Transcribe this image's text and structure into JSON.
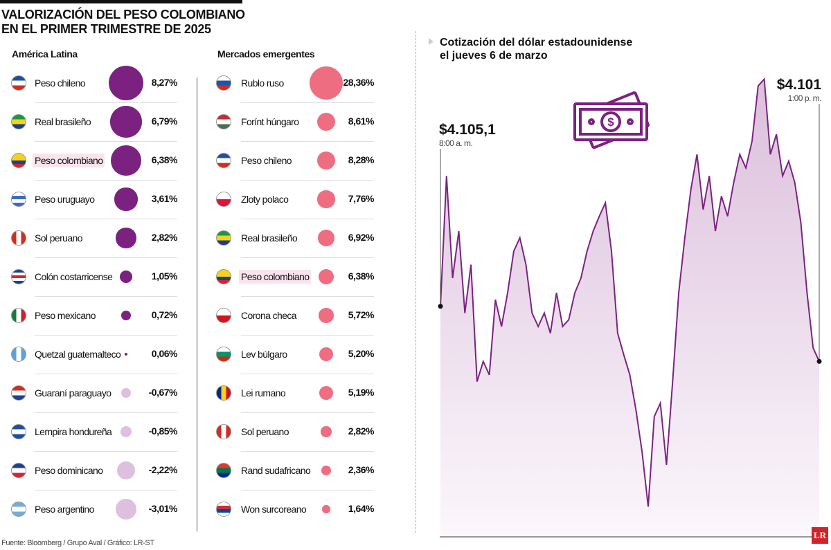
{
  "title_line1": "VALORIZACIÓN DEL PESO COLOMBIANO",
  "title_line2": "EN EL PRIMER TRIMESTRE DE 2025",
  "colors": {
    "latam": "#7b2280",
    "emerging": "#ee6d80",
    "negative": "#dcc0dd",
    "highlight": "#f9e3ec",
    "line": "#7b2280"
  },
  "latam": {
    "heading": "América Latina",
    "items": [
      {
        "label": "Peso chileno",
        "value": 8.27,
        "text": "8,27%",
        "flag": [
          "#1f4fa0",
          "#ffffff",
          "#d52b1e"
        ]
      },
      {
        "label": "Real brasileño",
        "value": 6.79,
        "text": "6,79%",
        "flag": [
          "#1a9a3a",
          "#f6d21b",
          "#1a3f8f"
        ]
      },
      {
        "label": "Peso colombiano",
        "value": 6.38,
        "text": "6,38%",
        "flag": [
          "#f7d11b",
          "#f7d11b",
          "#1d3f94",
          "#d62430"
        ],
        "highlight": true
      },
      {
        "label": "Peso uruguayo",
        "value": 3.61,
        "text": "3,61%",
        "flag": [
          "#ffffff",
          "#3b6cc0",
          "#ffffff",
          "#3b6cc0"
        ]
      },
      {
        "label": "Sol peruano",
        "value": 2.82,
        "text": "2,82%",
        "flag": [
          "#d52b1e",
          "#ffffff",
          "#d52b1e"
        ],
        "vertical": true
      },
      {
        "label": "Colón costarricense",
        "value": 1.05,
        "text": "1,05%",
        "flag": [
          "#1d3f94",
          "#ffffff",
          "#d62430",
          "#ffffff",
          "#1d3f94"
        ]
      },
      {
        "label": "Peso mexicano",
        "value": 0.72,
        "text": "0,72%",
        "flag": [
          "#1a7a3a",
          "#ffffff",
          "#ce2030"
        ],
        "vertical": true
      },
      {
        "label": "Quetzal guatemalteco",
        "value": 0.06,
        "text": "0,06%",
        "flag": [
          "#5ba3dc",
          "#ffffff",
          "#5ba3dc"
        ],
        "vertical": true
      },
      {
        "label": "Guaraní paraguayo",
        "value": -0.67,
        "text": "-0,67%",
        "flag": [
          "#d52b1e",
          "#ffffff",
          "#1d3f94"
        ]
      },
      {
        "label": "Lempira hondureña",
        "value": -0.85,
        "text": "-0,85%",
        "flag": [
          "#1d4f9c",
          "#ffffff",
          "#1d4f9c"
        ]
      },
      {
        "label": "Peso dominicano",
        "value": -2.22,
        "text": "-2,22%",
        "flag": [
          "#1d3f94",
          "#ffffff",
          "#d62430"
        ]
      },
      {
        "label": "Peso argentino",
        "value": -3.01,
        "text": "-3,01%",
        "flag": [
          "#74acdf",
          "#ffffff",
          "#74acdf"
        ]
      }
    ]
  },
  "emerging": {
    "heading": "Mercados emergentes",
    "items": [
      {
        "label": "Rublo ruso",
        "value": 28.36,
        "text": "28,36%",
        "flag": [
          "#ffffff",
          "#1c57a5",
          "#d52b1e"
        ]
      },
      {
        "label": "Forínt húngaro",
        "value": 8.61,
        "text": "8,61%",
        "flag": [
          "#ce2939",
          "#ffffff",
          "#477050"
        ]
      },
      {
        "label": "Peso chileno",
        "value": 8.28,
        "text": "8,28%",
        "flag": [
          "#1f4fa0",
          "#ffffff",
          "#d52b1e"
        ]
      },
      {
        "label": "Zloty polaco",
        "value": 7.76,
        "text": "7,76%",
        "flag": [
          "#ffffff",
          "#dc143c"
        ]
      },
      {
        "label": "Real brasileño",
        "value": 6.92,
        "text": "6,92%",
        "flag": [
          "#1a9a3a",
          "#f6d21b",
          "#1a3f8f"
        ]
      },
      {
        "label": "Peso colombiano",
        "value": 6.38,
        "text": "6,38%",
        "flag": [
          "#f7d11b",
          "#f7d11b",
          "#1d3f94",
          "#d62430"
        ],
        "highlight": true
      },
      {
        "label": "Corona checa",
        "value": 5.72,
        "text": "5,72%",
        "flag": [
          "#ffffff",
          "#d7141a"
        ]
      },
      {
        "label": "Lev búlgaro",
        "value": 5.2,
        "text": "5,20%",
        "flag": [
          "#ffffff",
          "#00966e",
          "#d62612"
        ]
      },
      {
        "label": "Lei rumano",
        "value": 5.19,
        "text": "5,19%",
        "flag": [
          "#002b7f",
          "#fcd116",
          "#ce1126"
        ],
        "vertical": true
      },
      {
        "label": "Sol peruano",
        "value": 2.82,
        "text": "2,82%",
        "flag": [
          "#d52b1e",
          "#ffffff",
          "#d52b1e"
        ],
        "vertical": true
      },
      {
        "label": "Rand sudafricano",
        "value": 2.36,
        "text": "2,36%",
        "flag": [
          "#de3831",
          "#007a4d",
          "#002395"
        ]
      },
      {
        "label": "Won surcoreano",
        "value": 1.64,
        "text": "1,64%",
        "flag": [
          "#ffffff",
          "#cd2e3a",
          "#0047a0",
          "#ffffff"
        ]
      }
    ]
  },
  "chart_data": {
    "type": "area",
    "title_line1": "Cotización del dólar estadounidense",
    "title_line2": "el jueves 6 de marzo",
    "start": {
      "value": "$4.105,1",
      "time": "8:00 a. m."
    },
    "end": {
      "value": "$4.101",
      "time": "1:00 p. m."
    },
    "ylim": [
      4088,
      4123
    ],
    "values": [
      4105.1,
      4114.8,
      4107.2,
      4110.7,
      4104.6,
      4108.2,
      4099.5,
      4101.0,
      4100.0,
      4105.6,
      4103.6,
      4106.1,
      4109.2,
      4110.2,
      4108.2,
      4104.6,
      4103.6,
      4104.6,
      4103.1,
      4106.1,
      4103.6,
      4104.1,
      4106.1,
      4107.2,
      4109.2,
      4110.7,
      4111.8,
      4112.8,
      4109.2,
      4103.1,
      4101.5,
      4100.0,
      4097.4,
      4094.3,
      4090.2,
      4096.9,
      4097.9,
      4093.3,
      4099.5,
      4106.1,
      4110.2,
      4113.8,
      4116.4,
      4112.3,
      4114.8,
      4110.7,
      4113.3,
      4111.8,
      4114.3,
      4116.4,
      4115.4,
      4117.4,
      4121.5,
      4122.0,
      4116.4,
      4117.9,
      4114.8,
      4115.9,
      4114.3,
      4111.3,
      4106.1,
      4102.0,
      4101.0
    ],
    "grid": false
  },
  "source": "Fuente: Bloomberg / Grupo Aval / Gráfico: LR-ST",
  "logo": "LR"
}
